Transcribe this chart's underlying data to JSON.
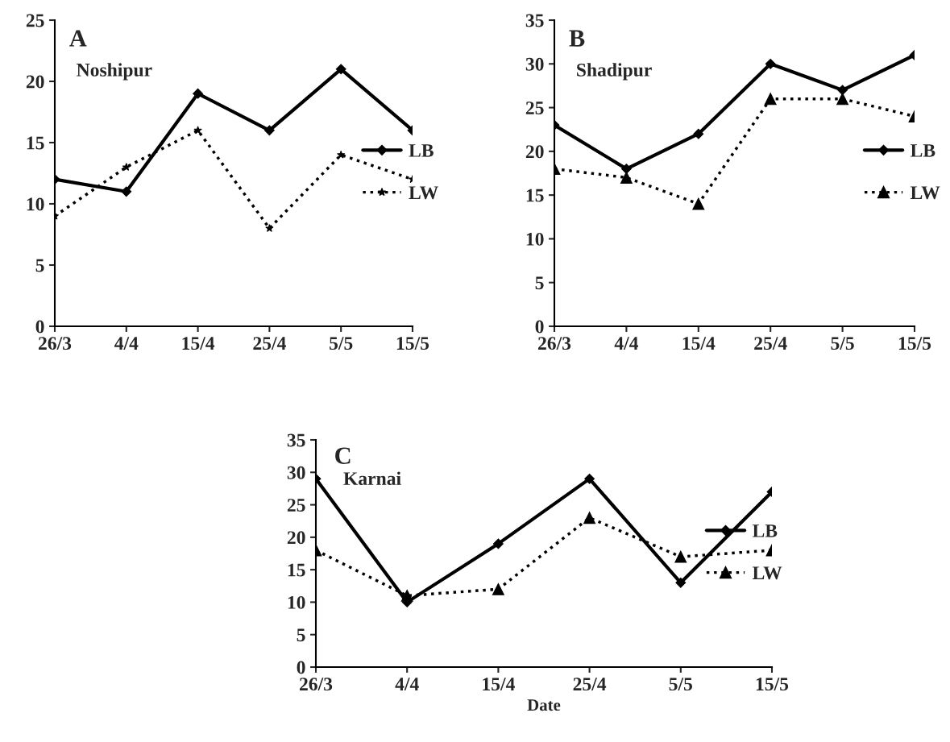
{
  "chart_data": [
    {
      "type": "line",
      "annotations": [
        "A",
        "Noshipur"
      ],
      "categories": [
        "26/3",
        "4/4",
        "15/4",
        "25/4",
        "5/5",
        "15/5"
      ],
      "series": [
        {
          "name": "LB",
          "color": "#000000",
          "values": [
            12,
            11,
            19,
            16,
            21,
            16
          ],
          "marker": "diamond",
          "line_style": "solid"
        },
        {
          "name": "LW",
          "color": "#000000",
          "values": [
            9,
            13,
            16,
            8,
            14,
            12
          ],
          "marker": "star",
          "line_style": "dotted"
        }
      ],
      "ylim": [
        0,
        25
      ],
      "yticks": [
        0,
        5,
        10,
        15,
        20,
        25
      ],
      "legend": "right",
      "grid": false
    },
    {
      "type": "line",
      "annotations": [
        "B",
        "Shadipur"
      ],
      "categories": [
        "26/3",
        "4/4",
        "15/4",
        "25/4",
        "5/5",
        "15/5"
      ],
      "series": [
        {
          "name": "LB",
          "color": "#000000",
          "values": [
            23,
            18,
            22,
            30,
            27,
            31
          ],
          "marker": "diamond",
          "line_style": "solid"
        },
        {
          "name": "LW",
          "color": "#000000",
          "values": [
            18,
            17,
            14,
            26,
            26,
            24
          ],
          "marker": "triangle",
          "line_style": "dotted"
        }
      ],
      "ylim": [
        0,
        35
      ],
      "yticks": [
        0,
        5,
        10,
        15,
        20,
        25,
        30,
        35
      ],
      "legend": "right",
      "grid": false
    },
    {
      "type": "line",
      "annotations": [
        "C",
        "Karnai"
      ],
      "xlabel": "Date",
      "categories": [
        "26/3",
        "4/4",
        "15/4",
        "25/4",
        "5/5",
        "15/5"
      ],
      "series": [
        {
          "name": "LB",
          "color": "#000000",
          "values": [
            29,
            10,
            19,
            29,
            13,
            27
          ],
          "marker": "diamond",
          "line_style": "solid"
        },
        {
          "name": "LW",
          "color": "#000000",
          "values": [
            18,
            11,
            12,
            23,
            17,
            18
          ],
          "marker": "triangle",
          "line_style": "dotted"
        }
      ],
      "ylim": [
        0,
        35
      ],
      "yticks": [
        0,
        5,
        10,
        15,
        20,
        25,
        30,
        35
      ],
      "legend": "right",
      "grid": false
    }
  ]
}
